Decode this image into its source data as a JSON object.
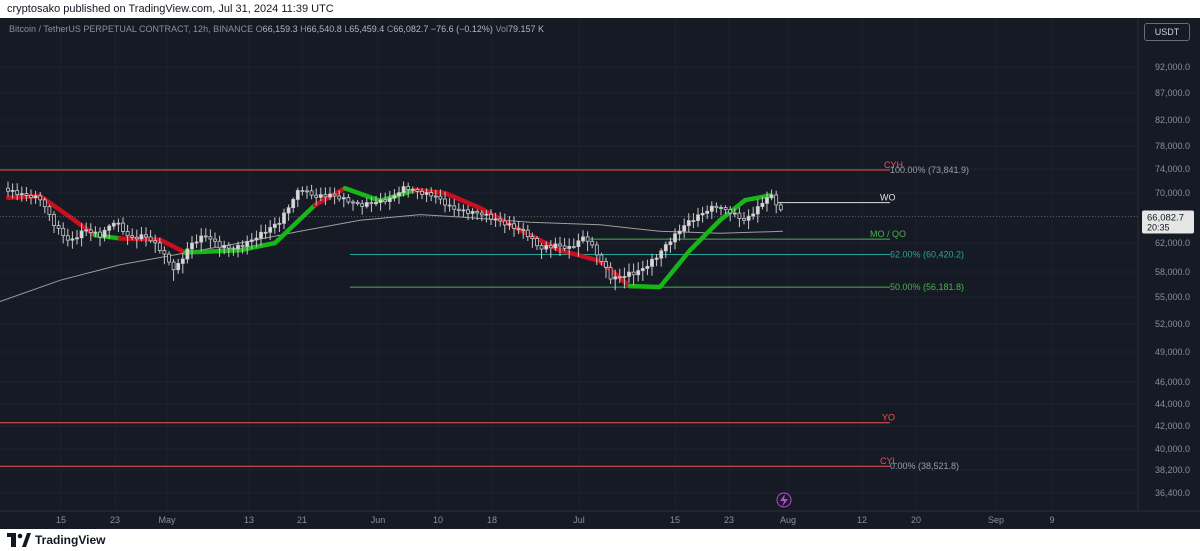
{
  "header": {
    "published_text": "cryptosako published on TradingView.com, Jul 31, 2024 11:39 UTC"
  },
  "footer": {
    "brand": "TradingView"
  },
  "currency_button": {
    "label": "USDT"
  },
  "legend": {
    "symbol": "Bitcoin / TetherUS PERPETUAL CONTRACT, 12h, BINANCE",
    "open_label": "O",
    "open_value": "66,159.3",
    "high_label": "H",
    "high_value": "66,540.8",
    "low_label": "L",
    "low_value": "65,459.4",
    "close_label": "C",
    "close_value": "66,082.7",
    "change": "−76.6 (−0.12%)",
    "vol_label": "Vol",
    "vol_value": "79.157 K"
  },
  "price_badge": {
    "price": "66,082.7",
    "countdown": "20:35"
  },
  "colors": {
    "background": "#161a25",
    "red_level": "#f05350",
    "white_level": "#e0e0e0",
    "teal_level": "#26a69a",
    "green_level": "#4caf50",
    "ribbon_green": "#19b619",
    "ribbon_red": "#c80f1e",
    "ma_line": "#9e9e9e",
    "candle": "#c8c8c8"
  },
  "chart_data": {
    "type": "candlestick",
    "timeframe": "12h",
    "y_axis_ticks": [
      "92,000.0",
      "87,000.0",
      "82,000.0",
      "78,000.0",
      "74,000.0",
      "70,000.0",
      "66,000.0",
      "62,000.0",
      "58,000.0",
      "55,000.0",
      "52,000.0",
      "49,000.0",
      "46,000.0",
      "44,000.0",
      "42,000.0",
      "40,000.0",
      "38,200.0",
      "36,400.0"
    ],
    "x_axis_ticks": [
      "15",
      "23",
      "May",
      "13",
      "21",
      "Jun",
      "10",
      "18",
      "Jul",
      "15",
      "23",
      "Aug",
      "12",
      "20",
      "Sep",
      "9"
    ],
    "levels": [
      {
        "label": "CYH",
        "fib_label": "100.00% (73,841.9)",
        "price": 73841.9,
        "color": "red"
      },
      {
        "label": "WO",
        "fib_label": "",
        "price": 68400,
        "color": "white"
      },
      {
        "label": "MO / QO",
        "fib_label": "",
        "price": 62600,
        "color": "green"
      },
      {
        "label": "",
        "fib_label": "62.00% (60,420.2)",
        "price": 60420.2,
        "color": "teal"
      },
      {
        "label": "",
        "fib_label": "50.00% (56,181.8)",
        "price": 56181.8,
        "color": "green"
      },
      {
        "label": "YO",
        "fib_label": "",
        "price": 42300,
        "color": "red"
      },
      {
        "label": "CYL",
        "fib_label": "0.00% (38,521.8)",
        "price": 38521.8,
        "color": "red"
      }
    ],
    "last_price": 66082.7,
    "moving_average": [
      {
        "t": 0,
        "p": 54500
      },
      {
        "t": 60,
        "p": 57000
      },
      {
        "t": 120,
        "p": 59000
      },
      {
        "t": 180,
        "p": 60500
      },
      {
        "t": 240,
        "p": 62000
      },
      {
        "t": 300,
        "p": 63800
      },
      {
        "t": 360,
        "p": 65500
      },
      {
        "t": 420,
        "p": 66400
      },
      {
        "t": 460,
        "p": 66000
      },
      {
        "t": 530,
        "p": 65200
      },
      {
        "t": 600,
        "p": 64800
      },
      {
        "t": 660,
        "p": 63800
      },
      {
        "t": 720,
        "p": 63500
      },
      {
        "t": 783,
        "p": 63800
      }
    ],
    "trend_ribbon": [
      {
        "t": 8,
        "p": 69200,
        "trend": "down"
      },
      {
        "t": 40,
        "p": 69500,
        "trend": "down"
      },
      {
        "t": 70,
        "p": 66000,
        "trend": "down"
      },
      {
        "t": 95,
        "p": 63200,
        "trend": "down"
      },
      {
        "t": 120,
        "p": 62700,
        "trend": "up"
      },
      {
        "t": 160,
        "p": 62500,
        "trend": "down"
      },
      {
        "t": 185,
        "p": 60700,
        "trend": "down"
      },
      {
        "t": 205,
        "p": 60800,
        "trend": "up"
      },
      {
        "t": 240,
        "p": 61000,
        "trend": "up"
      },
      {
        "t": 275,
        "p": 62000,
        "trend": "up"
      },
      {
        "t": 315,
        "p": 68000,
        "trend": "up"
      },
      {
        "t": 345,
        "p": 70800,
        "trend": "down"
      },
      {
        "t": 380,
        "p": 68700,
        "trend": "up"
      },
      {
        "t": 415,
        "p": 70500,
        "trend": "up"
      },
      {
        "t": 445,
        "p": 70000,
        "trend": "down"
      },
      {
        "t": 480,
        "p": 67500,
        "trend": "down"
      },
      {
        "t": 520,
        "p": 64000,
        "trend": "down"
      },
      {
        "t": 560,
        "p": 61000,
        "trend": "down"
      },
      {
        "t": 600,
        "p": 59500,
        "trend": "down"
      },
      {
        "t": 630,
        "p": 56300,
        "trend": "down"
      },
      {
        "t": 660,
        "p": 56200,
        "trend": "up"
      },
      {
        "t": 690,
        "p": 61000,
        "trend": "up"
      },
      {
        "t": 720,
        "p": 65500,
        "trend": "up"
      },
      {
        "t": 745,
        "p": 68800,
        "trend": "up"
      },
      {
        "t": 770,
        "p": 69600,
        "trend": "up"
      }
    ],
    "price_path": [
      {
        "t": 8,
        "p": 70800
      },
      {
        "t": 25,
        "p": 70000
      },
      {
        "t": 40,
        "p": 69500
      },
      {
        "t": 55,
        "p": 65000
      },
      {
        "t": 70,
        "p": 62500
      },
      {
        "t": 85,
        "p": 64500
      },
      {
        "t": 100,
        "p": 63500
      },
      {
        "t": 115,
        "p": 65800
      },
      {
        "t": 130,
        "p": 63000
      },
      {
        "t": 145,
        "p": 63500
      },
      {
        "t": 160,
        "p": 61500
      },
      {
        "t": 175,
        "p": 58500
      },
      {
        "t": 190,
        "p": 62000
      },
      {
        "t": 205,
        "p": 63500
      },
      {
        "t": 220,
        "p": 61800
      },
      {
        "t": 235,
        "p": 61500
      },
      {
        "t": 250,
        "p": 62500
      },
      {
        "t": 265,
        "p": 64000
      },
      {
        "t": 280,
        "p": 65500
      },
      {
        "t": 300,
        "p": 71000
      },
      {
        "t": 315,
        "p": 69500
      },
      {
        "t": 330,
        "p": 69800
      },
      {
        "t": 345,
        "p": 69000
      },
      {
        "t": 360,
        "p": 68000
      },
      {
        "t": 375,
        "p": 68500
      },
      {
        "t": 390,
        "p": 69000
      },
      {
        "t": 405,
        "p": 71000
      },
      {
        "t": 420,
        "p": 70000
      },
      {
        "t": 435,
        "p": 69500
      },
      {
        "t": 450,
        "p": 67500
      },
      {
        "t": 465,
        "p": 66800
      },
      {
        "t": 480,
        "p": 66500
      },
      {
        "t": 495,
        "p": 65500
      },
      {
        "t": 510,
        "p": 64500
      },
      {
        "t": 525,
        "p": 63500
      },
      {
        "t": 540,
        "p": 61000
      },
      {
        "t": 555,
        "p": 61500
      },
      {
        "t": 570,
        "p": 61000
      },
      {
        "t": 585,
        "p": 62800
      },
      {
        "t": 600,
        "p": 59500
      },
      {
        "t": 612,
        "p": 56800
      },
      {
        "t": 625,
        "p": 57300
      },
      {
        "t": 640,
        "p": 57800
      },
      {
        "t": 655,
        "p": 59500
      },
      {
        "t": 670,
        "p": 62000
      },
      {
        "t": 685,
        "p": 64500
      },
      {
        "t": 700,
        "p": 66000
      },
      {
        "t": 715,
        "p": 67500
      },
      {
        "t": 730,
        "p": 66500
      },
      {
        "t": 745,
        "p": 65000
      },
      {
        "t": 760,
        "p": 67500
      },
      {
        "t": 770,
        "p": 69500
      },
      {
        "t": 783,
        "p": 66082.7
      }
    ]
  }
}
